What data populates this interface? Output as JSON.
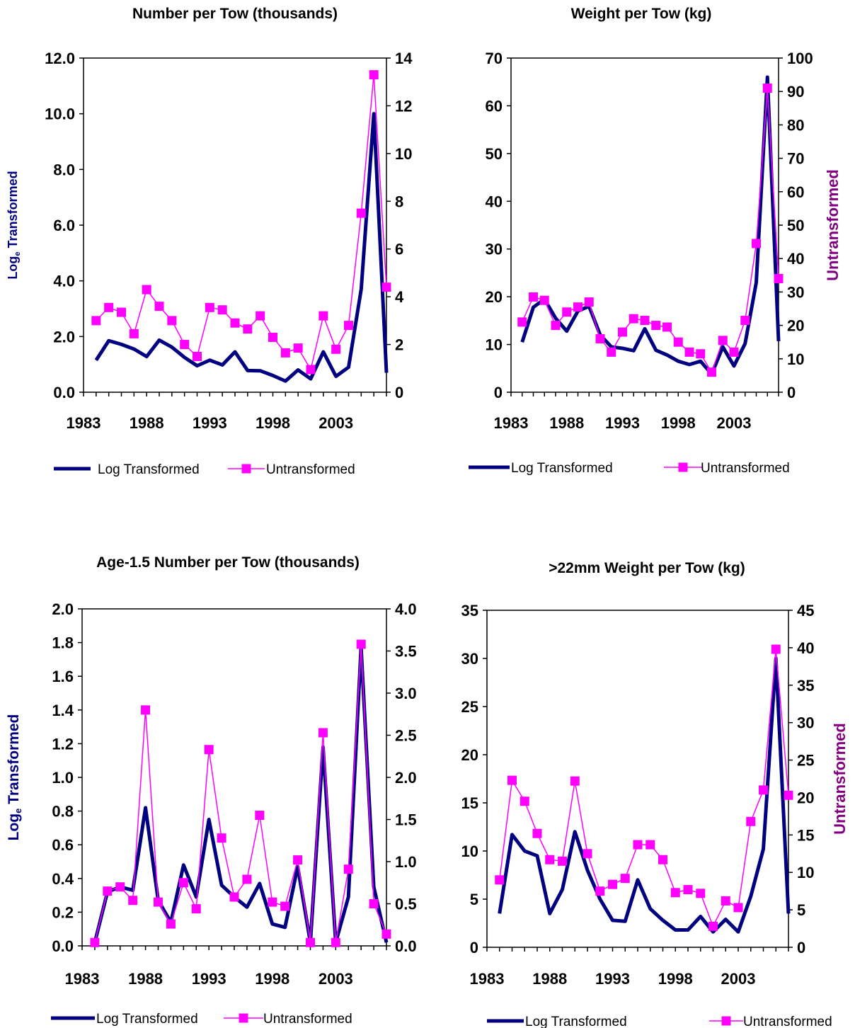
{
  "colors": {
    "log": "#000080",
    "untransformed": "#FF00FF",
    "y_left_label": "#000080",
    "y_right_label": "#800080"
  },
  "chart_data": [
    {
      "type": "line",
      "title": "Number per Tow (thousands)",
      "ylabel": "Loge Transformed",
      "ylabel_main": "Log",
      "ylabel_sub": "e",
      "ylabel_rest": " Transformed",
      "y2label": "",
      "ylim": [
        0,
        12
      ],
      "y_ticks": [
        "0.0",
        "2.0",
        "4.0",
        "6.0",
        "8.0",
        "10.0",
        "12.0"
      ],
      "y2lim": [
        0,
        14
      ],
      "y2_ticks": [
        "0",
        "2",
        "4",
        "6",
        "8",
        "10",
        "12",
        "14"
      ],
      "xlim": [
        1983,
        2007
      ],
      "x_ticks": [
        "1983",
        "1988",
        "1993",
        "1998",
        "2003"
      ],
      "x": [
        1984,
        1985,
        1986,
        1987,
        1988,
        1989,
        1990,
        1991,
        1992,
        1993,
        1994,
        1995,
        1996,
        1997,
        1998,
        1999,
        2000,
        2001,
        2002,
        2003,
        2004,
        2005,
        2006,
        2007
      ],
      "series": [
        {
          "name": "Log Transformed",
          "axis": "left",
          "values": [
            1.15,
            1.85,
            1.72,
            1.55,
            1.28,
            1.87,
            1.62,
            1.25,
            0.95,
            1.15,
            0.98,
            1.45,
            0.78,
            0.77,
            0.6,
            0.4,
            0.8,
            0.48,
            1.45,
            0.57,
            0.9,
            3.7,
            10.0,
            0.7
          ]
        },
        {
          "name": "Untransformed",
          "axis": "right",
          "values": [
            3.0,
            3.55,
            3.35,
            2.45,
            4.3,
            3.6,
            3.0,
            2.0,
            1.5,
            3.55,
            3.45,
            2.9,
            2.65,
            3.2,
            2.3,
            1.65,
            1.85,
            0.95,
            3.2,
            1.8,
            2.8,
            7.5,
            13.3,
            4.4
          ]
        }
      ],
      "legend": [
        "Log Transformed",
        "Untransformed"
      ],
      "legend_position": "bottom",
      "grid": false
    },
    {
      "type": "line",
      "title": "Weight per Tow (kg)",
      "ylabel": "",
      "ylabel_main": "",
      "ylabel_sub": "",
      "ylabel_rest": "",
      "y2label": "Untransformed",
      "ylim": [
        0,
        70
      ],
      "y_ticks": [
        "0",
        "10",
        "20",
        "30",
        "40",
        "50",
        "60",
        "70"
      ],
      "y2lim": [
        0,
        100
      ],
      "y2_ticks": [
        "0",
        "10",
        "20",
        "30",
        "40",
        "50",
        "60",
        "70",
        "80",
        "90",
        "100"
      ],
      "xlim": [
        1983,
        2007
      ],
      "x_ticks": [
        "1983",
        "1988",
        "1993",
        "1998",
        "2003"
      ],
      "x": [
        1984,
        1985,
        1986,
        1987,
        1988,
        1989,
        1990,
        1991,
        1992,
        1993,
        1994,
        1995,
        1996,
        1997,
        1998,
        1999,
        2000,
        2001,
        2002,
        2003,
        2004,
        2005,
        2006,
        2007
      ],
      "series": [
        {
          "name": "Log Transformed",
          "axis": "left",
          "values": [
            10.5,
            17.8,
            19.5,
            15.5,
            12.8,
            17.0,
            18.0,
            12.0,
            9.5,
            9.2,
            8.7,
            13.3,
            8.8,
            7.8,
            6.5,
            5.8,
            6.5,
            3.8,
            9.5,
            5.5,
            10.2,
            23.0,
            66.0,
            10.7
          ]
        },
        {
          "name": "Untransformed",
          "axis": "right",
          "values": [
            21.0,
            28.5,
            27.5,
            20.0,
            24.0,
            25.5,
            27.0,
            16.0,
            12.0,
            18.0,
            22.0,
            21.5,
            20.0,
            19.5,
            15.0,
            12.0,
            11.5,
            6.0,
            15.5,
            12.0,
            21.5,
            44.5,
            91.0,
            34.0
          ]
        }
      ],
      "legend": [
        "Log Transformed",
        "Untransformed"
      ],
      "legend_position": "bottom",
      "grid": false
    },
    {
      "type": "line",
      "title": "Age-1.5 Number per Tow (thousands)",
      "ylabel": "Loge Transformed",
      "ylabel_main": "Log",
      "ylabel_sub": "e",
      "ylabel_rest": " Transformed",
      "y2label": "",
      "ylim": [
        0,
        2
      ],
      "y_ticks": [
        "0.0",
        "0.2",
        "0.4",
        "0.6",
        "0.8",
        "1.0",
        "1.2",
        "1.4",
        "1.6",
        "1.8",
        "2.0"
      ],
      "y2lim": [
        0,
        4
      ],
      "y2_ticks": [
        "0.0",
        "0.5",
        "1.0",
        "1.5",
        "2.0",
        "2.5",
        "3.0",
        "3.5",
        "4.0"
      ],
      "xlim": [
        1983,
        2007
      ],
      "x_ticks": [
        "1983",
        "1988",
        "1993",
        "1998",
        "2003"
      ],
      "x": [
        1984,
        1985,
        1986,
        1987,
        1988,
        1989,
        1990,
        1991,
        1992,
        1993,
        1994,
        1995,
        1996,
        1997,
        1998,
        1999,
        2000,
        2001,
        2002,
        2003,
        2004,
        2005,
        2006,
        2007
      ],
      "series": [
        {
          "name": "Log Transformed",
          "axis": "left",
          "values": [
            0.02,
            0.32,
            0.35,
            0.33,
            0.82,
            0.27,
            0.14,
            0.48,
            0.29,
            0.75,
            0.36,
            0.29,
            0.23,
            0.37,
            0.13,
            0.11,
            0.47,
            0.02,
            1.18,
            0.02,
            0.29,
            1.77,
            0.35,
            0.02
          ]
        },
        {
          "name": "Untransformed",
          "axis": "right",
          "values": [
            0.04,
            0.65,
            0.7,
            0.54,
            2.8,
            0.52,
            0.26,
            0.75,
            0.44,
            2.33,
            1.28,
            0.58,
            0.79,
            1.55,
            0.52,
            0.47,
            1.02,
            0.04,
            2.53,
            0.04,
            0.91,
            3.58,
            0.5,
            0.14
          ]
        }
      ],
      "legend": [
        "Log Transformed",
        "Untransformed"
      ],
      "legend_position": "bottom",
      "grid": false
    },
    {
      "type": "line",
      "title": ">22mm Weight per Tow (kg)",
      "ylabel": "",
      "ylabel_main": "",
      "ylabel_sub": "",
      "ylabel_rest": "",
      "y2label": "Untransformed",
      "ylim": [
        0,
        35
      ],
      "y_ticks": [
        "0",
        "5",
        "10",
        "15",
        "20",
        "25",
        "30",
        "35"
      ],
      "y2lim": [
        0,
        45
      ],
      "y2_ticks": [
        "0",
        "5",
        "10",
        "15",
        "20",
        "25",
        "30",
        "35",
        "40",
        "45"
      ],
      "xlim": [
        1983,
        2007
      ],
      "x_ticks": [
        "1983",
        "1988",
        "1993",
        "1998",
        "2003"
      ],
      "x": [
        1984,
        1985,
        1986,
        1987,
        1988,
        1989,
        1990,
        1991,
        1992,
        1993,
        1994,
        1995,
        1996,
        1997,
        1998,
        1999,
        2000,
        2001,
        2002,
        2003,
        2004,
        2005,
        2006,
        2007
      ],
      "series": [
        {
          "name": "Log Transformed",
          "axis": "left",
          "values": [
            3.5,
            11.7,
            10.0,
            9.5,
            3.5,
            6.0,
            12.0,
            8.0,
            5.0,
            2.8,
            2.7,
            7.0,
            4.0,
            2.8,
            1.8,
            1.8,
            3.2,
            1.6,
            2.9,
            1.6,
            5.3,
            10.2,
            30.0,
            3.5
          ]
        },
        {
          "name": "Untransformed",
          "axis": "right",
          "values": [
            9.0,
            22.3,
            19.5,
            15.2,
            11.7,
            11.5,
            22.2,
            12.5,
            7.5,
            8.4,
            9.2,
            13.7,
            13.7,
            11.7,
            7.3,
            7.7,
            7.2,
            2.8,
            6.2,
            5.3,
            16.8,
            21.0,
            39.8,
            20.3
          ]
        }
      ],
      "legend": [
        "Log Transformed",
        "Untransformed"
      ],
      "legend_position": "bottom",
      "grid": false
    }
  ]
}
